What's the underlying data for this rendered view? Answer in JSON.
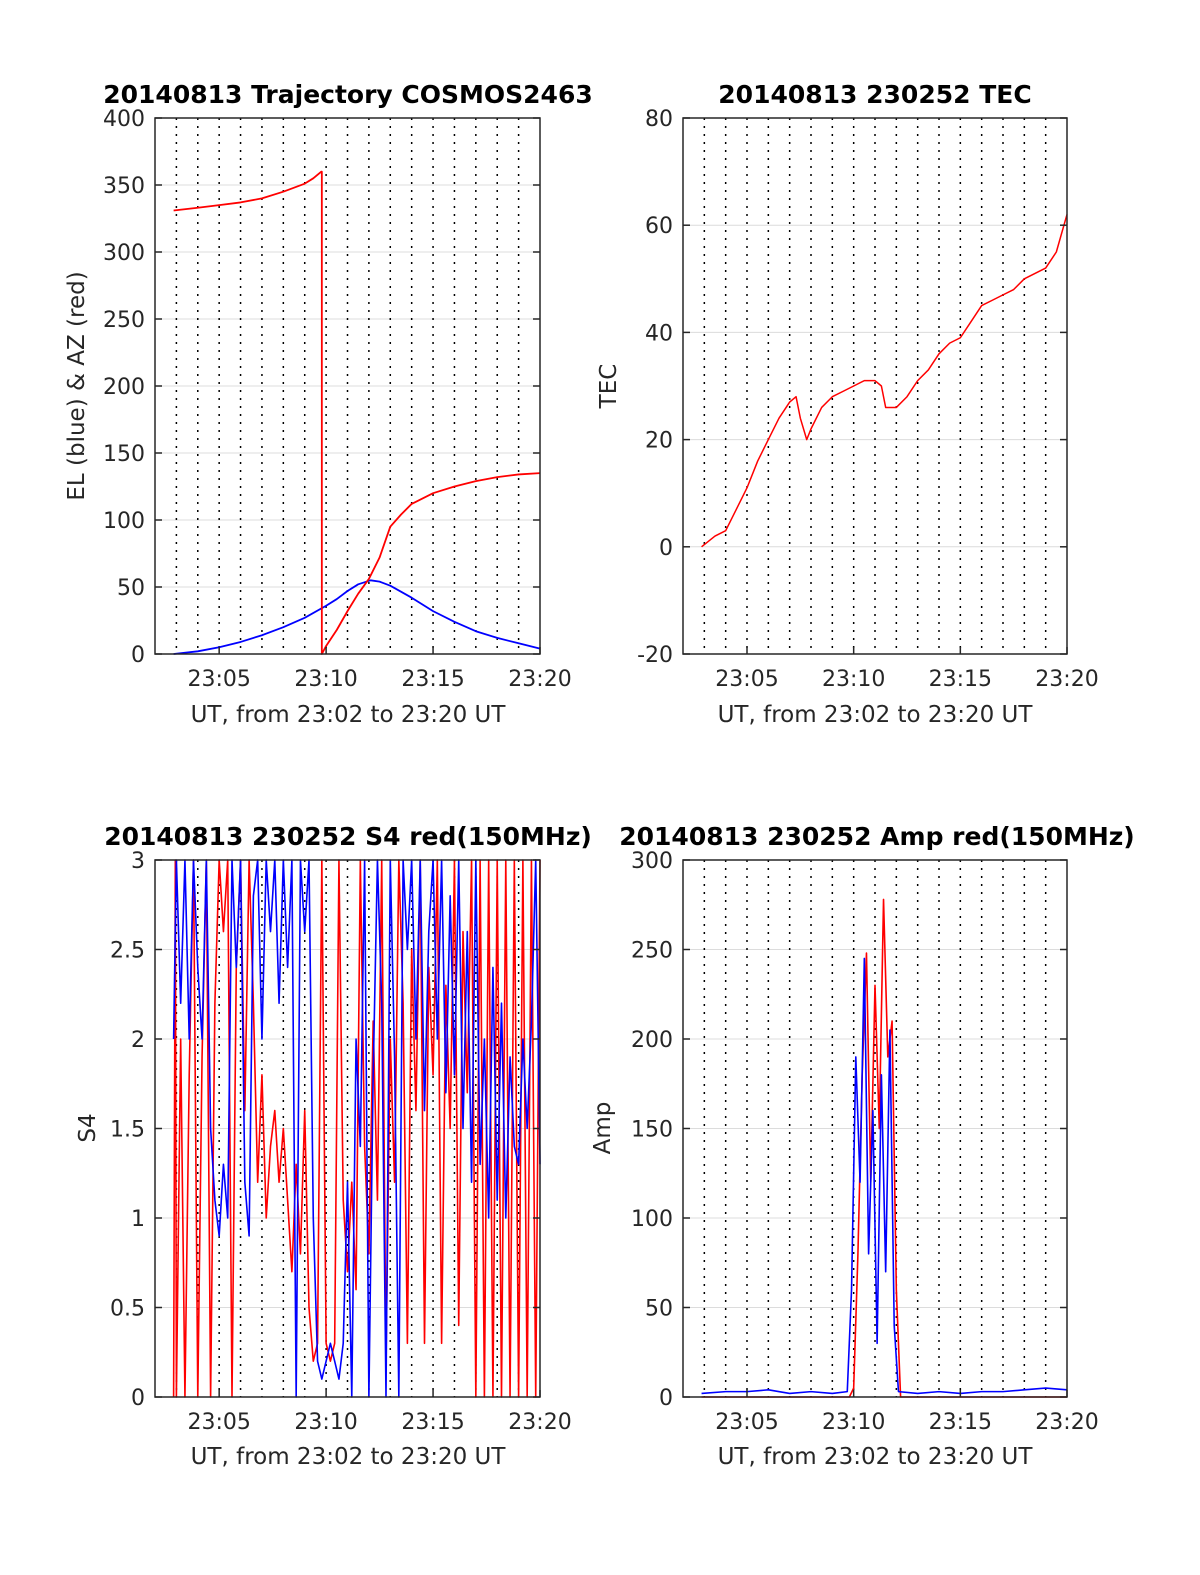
{
  "chart_data": [
    {
      "id": "trajectory",
      "type": "line",
      "title": "20140813 Trajectory COSMOS2463",
      "xlabel": "UT, from 23:02 to 23:20 UT",
      "ylabel": "EL (blue) & AZ (red)",
      "x_unit": "minutes after 23:00",
      "xlim": [
        2,
        20
      ],
      "ylim": [
        0,
        400
      ],
      "x_ticks": [
        5,
        10,
        15,
        20
      ],
      "x_tick_labels": [
        "23:05",
        "23:10",
        "23:15",
        "23:20"
      ],
      "y_ticks": [
        0,
        50,
        100,
        150,
        200,
        250,
        300,
        350,
        400
      ],
      "y_tick_labels": [
        "0",
        "50",
        "100",
        "150",
        "200",
        "250",
        "300",
        "350",
        "400"
      ],
      "grid": "dotted vertical every minute, solid horizontal at y ticks",
      "series": [
        {
          "name": "EL",
          "color": "#0000ff",
          "x": [
            2.87,
            4,
            5,
            6,
            7,
            8,
            9,
            10,
            10.5,
            11,
            11.5,
            12.08,
            12.5,
            13,
            14,
            15,
            16,
            17,
            18,
            19,
            20
          ],
          "y": [
            0,
            2,
            5,
            9,
            14,
            20,
            27,
            36,
            41,
            47,
            52,
            55,
            54,
            51,
            42,
            32,
            24,
            17,
            12,
            8,
            4
          ]
        },
        {
          "name": "AZ",
          "color": "#ff0000",
          "x": [
            2.87,
            4,
            5,
            6,
            7,
            8,
            8.5,
            9,
            9.4,
            9.78,
            9.8,
            9.8,
            10,
            10.5,
            11,
            11.5,
            12,
            12.5,
            13,
            13.5,
            14,
            15,
            16,
            17,
            18,
            19,
            20
          ],
          "y": [
            331,
            333,
            335,
            337,
            340,
            345,
            348,
            351,
            355,
            360,
            360,
            0,
            6,
            18,
            32,
            45,
            56,
            72,
            95,
            104,
            112,
            120,
            125,
            129,
            132,
            134,
            135
          ]
        }
      ]
    },
    {
      "id": "tec",
      "type": "line",
      "title": "20140813 230252 TEC",
      "xlabel": "UT, from 23:02 to 23:20 UT",
      "ylabel": "TEC",
      "x_unit": "minutes after 23:00",
      "xlim": [
        2,
        20
      ],
      "ylim": [
        -20,
        80
      ],
      "x_ticks": [
        5,
        10,
        15,
        20
      ],
      "x_tick_labels": [
        "23:05",
        "23:10",
        "23:15",
        "23:20"
      ],
      "y_ticks": [
        -20,
        0,
        20,
        40,
        60,
        80
      ],
      "y_tick_labels": [
        "-20",
        "0",
        "20",
        "40",
        "60",
        "80"
      ],
      "grid": "dotted vertical every minute, solid horizontal at y ticks",
      "series": [
        {
          "name": "TEC",
          "color": "#ff0000",
          "x": [
            2.87,
            3.5,
            4,
            4.5,
            5,
            5.5,
            6,
            6.5,
            7,
            7.3,
            7.5,
            7.8,
            8,
            8.5,
            9,
            9.5,
            10,
            10.5,
            11,
            11.3,
            11.5,
            12,
            12.5,
            13,
            13.5,
            14,
            14.5,
            15,
            15.5,
            16,
            16.5,
            17,
            17.5,
            18,
            18.5,
            19,
            19.5,
            20
          ],
          "y": [
            0,
            2,
            3,
            7,
            11,
            16,
            20,
            24,
            27,
            28,
            24,
            20,
            22,
            26,
            28,
            29,
            30,
            31,
            31,
            30,
            26,
            26,
            28,
            31,
            33,
            36,
            38,
            39,
            42,
            45,
            46,
            47,
            48,
            50,
            51,
            52,
            55,
            62
          ]
        }
      ]
    },
    {
      "id": "s4",
      "type": "line",
      "title": "20140813 230252 S4 red(150MHz)",
      "xlabel": "UT, from 23:02 to 23:20 UT",
      "ylabel": "S4",
      "x_unit": "minutes after 23:00",
      "xlim": [
        2,
        20
      ],
      "ylim": [
        0,
        3
      ],
      "x_ticks": [
        5,
        10,
        15,
        20
      ],
      "x_tick_labels": [
        "23:05",
        "23:10",
        "23:15",
        "23:20"
      ],
      "y_ticks": [
        0,
        0.5,
        1,
        1.5,
        2,
        2.5,
        3
      ],
      "y_tick_labels": [
        "0",
        "0.5",
        "1",
        "1.5",
        "2",
        "2.5",
        "3"
      ],
      "grid": "dotted vertical every minute, solid horizontal at y ticks",
      "series": [
        {
          "name": "red",
          "color": "#ff0000",
          "x": [
            2.87,
            2.95,
            3.0,
            3.2,
            3.4,
            3.6,
            3.8,
            4.0,
            4.2,
            4.4,
            4.6,
            4.8,
            5.0,
            5.2,
            5.4,
            5.6,
            5.8,
            6.0,
            6.2,
            6.4,
            6.6,
            6.8,
            7.0,
            7.2,
            7.4,
            7.6,
            7.8,
            8.0,
            8.2,
            8.4,
            8.6,
            8.8,
            9.0,
            9.2,
            9.4,
            9.6,
            9.8,
            10.0,
            10.2,
            10.4,
            10.6,
            10.8,
            11.0,
            11.2,
            11.4,
            11.6,
            11.8,
            12.0,
            12.2,
            12.4,
            12.6,
            12.8,
            13.0,
            13.2,
            13.4,
            13.6,
            13.8,
            14.0,
            14.2,
            14.4,
            14.6,
            14.8,
            15.0,
            15.2,
            15.4,
            15.6,
            15.8,
            16.0,
            16.2,
            16.4,
            16.6,
            16.8,
            17.0,
            17.2,
            17.4,
            17.6,
            17.8,
            18.0,
            18.2,
            18.4,
            18.6,
            18.8,
            19.0,
            19.2,
            19.4,
            19.6,
            19.8,
            20.0
          ],
          "y": [
            0,
            3,
            0,
            2.0,
            0,
            1.8,
            3,
            0,
            1.9,
            3,
            0,
            2.2,
            3,
            2.6,
            3,
            0,
            2.4,
            3,
            1.6,
            3,
            2.2,
            1.2,
            1.8,
            1.0,
            1.4,
            1.6,
            1.2,
            1.5,
            1.1,
            0.7,
            1.3,
            0.8,
            1.6,
            0.5,
            0.2,
            0.3,
            3,
            0.3,
            0.2,
            0.3,
            3,
            1.1,
            0.7,
            1.2,
            0.6,
            3,
            1.4,
            0.8,
            2.1,
            1.1,
            3,
            0.2,
            2.0,
            1.2,
            3,
            2.2,
            0.3,
            2.5,
            1.6,
            3,
            0.3,
            2.4,
            1.8,
            3,
            0.3,
            2.3,
            1.5,
            3,
            0.4,
            2.6,
            1.7,
            3,
            0,
            3,
            0,
            3,
            0,
            3,
            0,
            3,
            0,
            3,
            0,
            3,
            0,
            3,
            0,
            3
          ]
        },
        {
          "name": "blue",
          "color": "#0000ff",
          "x": [
            2.87,
            3.0,
            3.2,
            3.4,
            3.6,
            3.8,
            4.0,
            4.2,
            4.4,
            4.6,
            4.8,
            5.0,
            5.2,
            5.4,
            5.6,
            5.8,
            6.0,
            6.2,
            6.4,
            6.6,
            6.8,
            7.0,
            7.2,
            7.4,
            7.6,
            7.8,
            8.0,
            8.2,
            8.4,
            8.6,
            8.8,
            9.0,
            9.2,
            9.4,
            9.6,
            9.8,
            10.0,
            10.2,
            10.4,
            10.6,
            10.8,
            11.0,
            11.2,
            11.4,
            11.6,
            11.8,
            12.0,
            12.2,
            12.4,
            12.6,
            12.8,
            13.0,
            13.2,
            13.4,
            13.6,
            13.8,
            14.0,
            14.2,
            14.4,
            14.6,
            14.8,
            15.0,
            15.2,
            15.4,
            15.6,
            15.8,
            16.0,
            16.2,
            16.4,
            16.6,
            16.8,
            17.0,
            17.2,
            17.4,
            17.6,
            17.8,
            18.0,
            18.2,
            18.4,
            18.6,
            18.8,
            19.0,
            19.2,
            19.4,
            19.6,
            19.8,
            20.0
          ],
          "y": [
            2.0,
            3,
            2.2,
            3,
            2.0,
            3,
            2.4,
            2.0,
            3,
            1.5,
            1.1,
            0.9,
            1.3,
            1.0,
            3,
            2.4,
            3,
            1.2,
            0.9,
            2.8,
            3,
            2.0,
            3,
            2.6,
            3,
            2.2,
            3,
            2.4,
            3,
            0,
            3,
            2.6,
            3,
            1.0,
            0.2,
            0.1,
            0.2,
            0.3,
            0.2,
            0.1,
            0.3,
            1.2,
            0,
            2.0,
            1.4,
            3,
            0,
            1.8,
            3,
            2.2,
            0,
            3,
            1.9,
            0,
            3,
            2.5,
            3,
            2.0,
            3,
            1.6,
            2.6,
            3,
            2.0,
            3,
            1.7,
            2.8,
            1.8,
            3,
            1.5,
            2.6,
            1.2,
            3,
            1.3,
            2.0,
            1.0,
            2.4,
            1.1,
            2.2,
            1.0,
            1.9,
            1.4,
            1.3,
            2.0,
            1.5,
            2.1,
            3,
            1.3
          ]
        }
      ]
    },
    {
      "id": "amp",
      "type": "line",
      "title": "20140813 230252 Amp red(150MHz)",
      "xlabel": "UT, from 23:02 to 23:20 UT",
      "ylabel": "Amp",
      "x_unit": "minutes after 23:00",
      "xlim": [
        2,
        20
      ],
      "ylim": [
        0,
        300
      ],
      "x_ticks": [
        5,
        10,
        15,
        20
      ],
      "x_tick_labels": [
        "23:05",
        "23:10",
        "23:15",
        "23:20"
      ],
      "y_ticks": [
        0,
        50,
        100,
        150,
        200,
        250,
        300
      ],
      "y_tick_labels": [
        "0",
        "50",
        "100",
        "150",
        "200",
        "250",
        "300"
      ],
      "grid": "dotted vertical every minute, solid horizontal at y ticks",
      "series": [
        {
          "name": "red",
          "color": "#ff0000",
          "x": [
            2.87,
            9.8,
            10.0,
            10.2,
            10.4,
            10.6,
            10.8,
            11.0,
            11.2,
            11.4,
            11.6,
            11.8,
            12.0,
            12.2,
            20.0
          ],
          "y": [
            0,
            0,
            5,
            80,
            180,
            248,
            120,
            230,
            150,
            278,
            190,
            210,
            60,
            0,
            0
          ]
        },
        {
          "name": "blue",
          "color": "#0000ff",
          "x": [
            2.87,
            4,
            5,
            6,
            7,
            8,
            9,
            9.7,
            9.9,
            10.1,
            10.3,
            10.5,
            10.7,
            10.9,
            11.1,
            11.3,
            11.5,
            11.7,
            11.9,
            12.1,
            13,
            14,
            15,
            16,
            17,
            18,
            19,
            20
          ],
          "y": [
            2,
            3,
            3,
            4,
            2,
            3,
            2,
            3,
            60,
            190,
            120,
            245,
            80,
            160,
            30,
            180,
            70,
            205,
            40,
            3,
            2,
            3,
            2,
            3,
            3,
            4,
            5,
            4
          ]
        }
      ]
    }
  ]
}
